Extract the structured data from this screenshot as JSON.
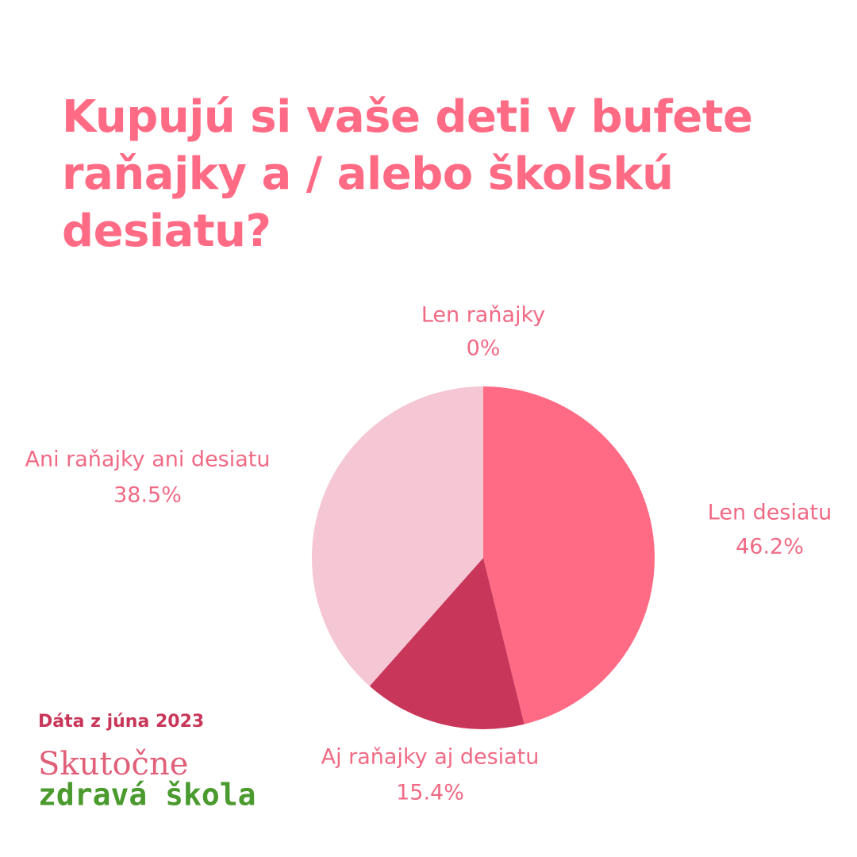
{
  "chart_data": {
    "type": "pie",
    "title": "Kupujú si vaše deti v bufete raňajky a / alebo školskú desiatu?",
    "categories": [
      "Len raňajky",
      "Len desiatu",
      "Aj raňajky aj desiatu",
      "Ani raňajky ani desiatu"
    ],
    "values": [
      0,
      46.2,
      15.4,
      38.5
    ],
    "value_labels": [
      "0%",
      "46.2%",
      "15.4%",
      "38.5%"
    ],
    "colors": [
      "#c8375a",
      "#ff6b84",
      "#c8375a",
      "#f5c6d3"
    ]
  },
  "source": "Dáta z júna 2023",
  "brand": [
    "Skutočne",
    "zdravá škola"
  ]
}
